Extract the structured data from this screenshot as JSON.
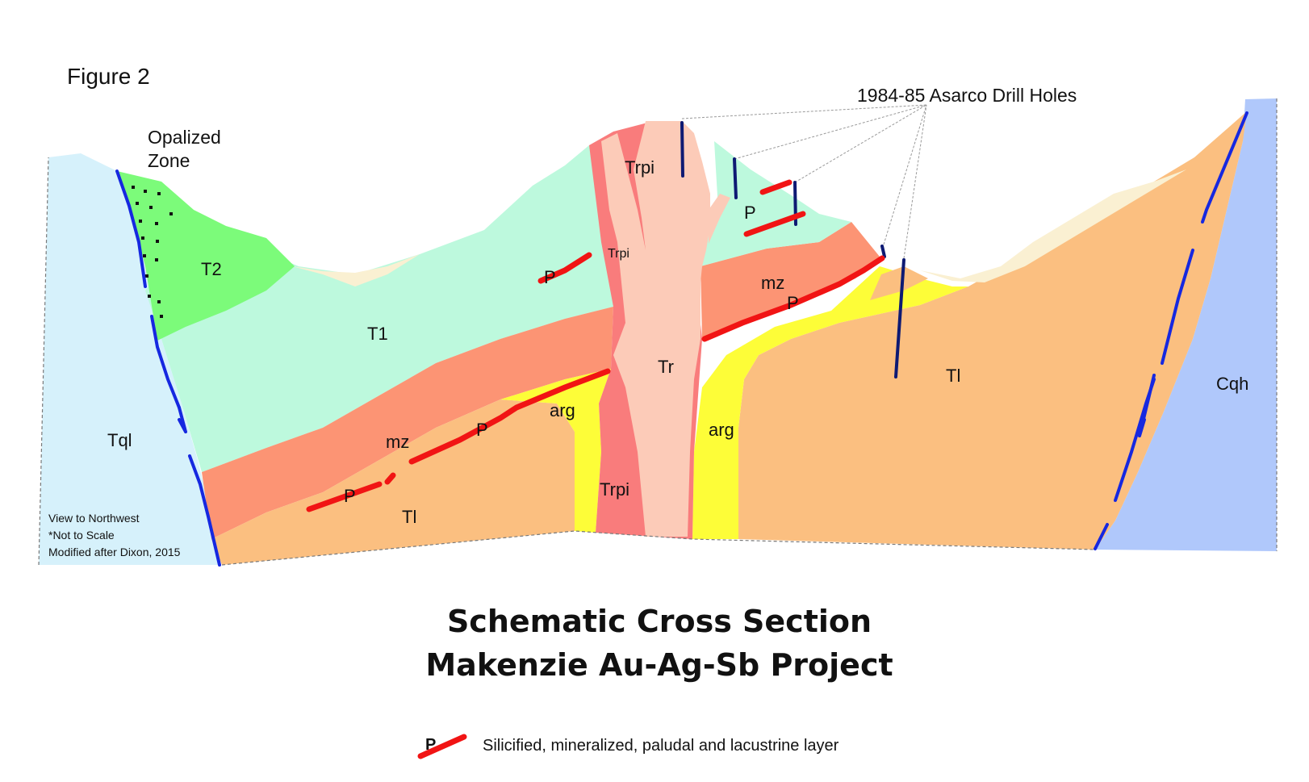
{
  "figure_label": "Figure 2",
  "title_line1": "Schematic Cross Section",
  "title_line2": "Makenzie Au-Ag-Sb Project",
  "callouts": {
    "opalized_line1": "Opalized",
    "opalized_line2": "Zone",
    "drill_holes": "1984-85 Asarco Drill Holes"
  },
  "notes": {
    "view": "View to Northwest",
    "scale": "*Not to Scale",
    "source": "Modified after Dixon, 2015"
  },
  "units": {
    "tql": "Tql",
    "t2": "T2",
    "t1": "T1",
    "trpi_top": "Trpi",
    "trpi_small": "Trpi",
    "trpi_bottom": "Trpi",
    "tr": "Tr",
    "mz_left": "mz",
    "mz_right": "mz",
    "arg_left": "arg",
    "arg_right": "arg",
    "tl_left": "Tl",
    "tl_right": "Tl",
    "cqh": "Cqh",
    "p1": "P",
    "p2": "P",
    "p3": "P",
    "p4": "P",
    "p5": "P"
  },
  "legend": {
    "symbol": "P",
    "text": "Silicified, mineralized, paludal and lacustrine layer"
  },
  "colors": {
    "tql": "#d6f1fb",
    "t2": "#7cfb7a",
    "t1": "#bdf9dd",
    "mz": "#fc9474",
    "tl": "#fbbf80",
    "arg": "#fdfd38",
    "trpi": "#f97c7c",
    "tr": "#fccbb8",
    "cqh": "#b0c8fb",
    "alluvium": "#faf0d2",
    "fault": "#1628e0",
    "drill": "#0e1a73",
    "p_layer": "#f11414"
  }
}
